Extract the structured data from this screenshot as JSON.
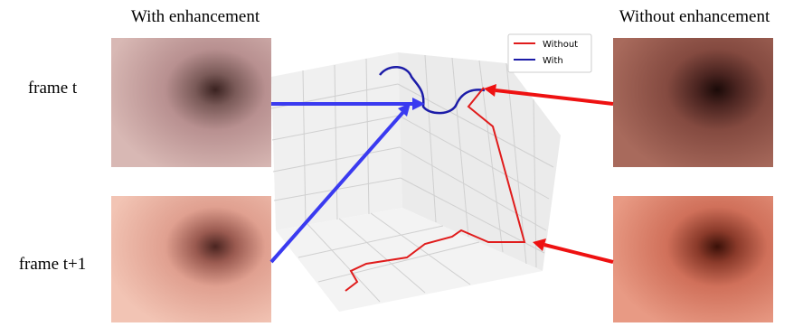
{
  "header": {
    "left_title": "With enhancement",
    "right_title": "Without enhancement"
  },
  "rows": [
    "frame t",
    "frame t+1"
  ],
  "legend": [
    "Without",
    "With"
  ]
}
